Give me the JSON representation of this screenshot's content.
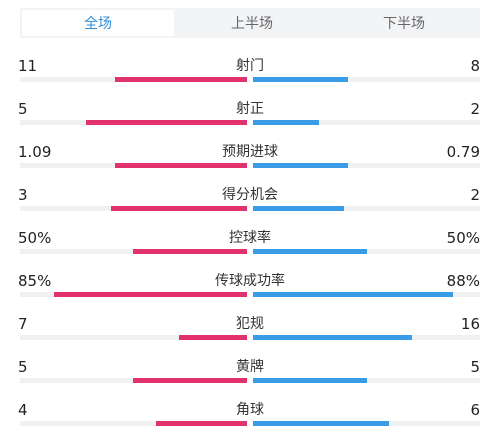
{
  "tabs": [
    {
      "label": "全场",
      "active": true
    },
    {
      "label": "上半场",
      "active": false
    },
    {
      "label": "下半场",
      "active": false
    }
  ],
  "colors": {
    "home": "#e2326d",
    "away": "#3a9be6",
    "active_tab": "#2f8fd8"
  },
  "stats": [
    {
      "label": "射门",
      "home": "11",
      "away": "8",
      "home_share": 0.58,
      "away_share": 0.42
    },
    {
      "label": "射正",
      "home": "5",
      "away": "2",
      "home_share": 0.71,
      "away_share": 0.29
    },
    {
      "label": "预期进球",
      "home": "1.09",
      "away": "0.79",
      "home_share": 0.58,
      "away_share": 0.42
    },
    {
      "label": "得分机会",
      "home": "3",
      "away": "2",
      "home_share": 0.6,
      "away_share": 0.4
    },
    {
      "label": "控球率",
      "home": "50%",
      "away": "50%",
      "home_share": 0.5,
      "away_share": 0.5
    },
    {
      "label": "传球成功率",
      "home": "85%",
      "away": "88%",
      "home_share": 0.85,
      "away_share": 0.88
    },
    {
      "label": "犯规",
      "home": "7",
      "away": "16",
      "home_share": 0.3,
      "away_share": 0.7
    },
    {
      "label": "黄牌",
      "home": "5",
      "away": "5",
      "home_share": 0.5,
      "away_share": 0.5
    },
    {
      "label": "角球",
      "home": "4",
      "away": "6",
      "home_share": 0.4,
      "away_share": 0.6
    }
  ]
}
